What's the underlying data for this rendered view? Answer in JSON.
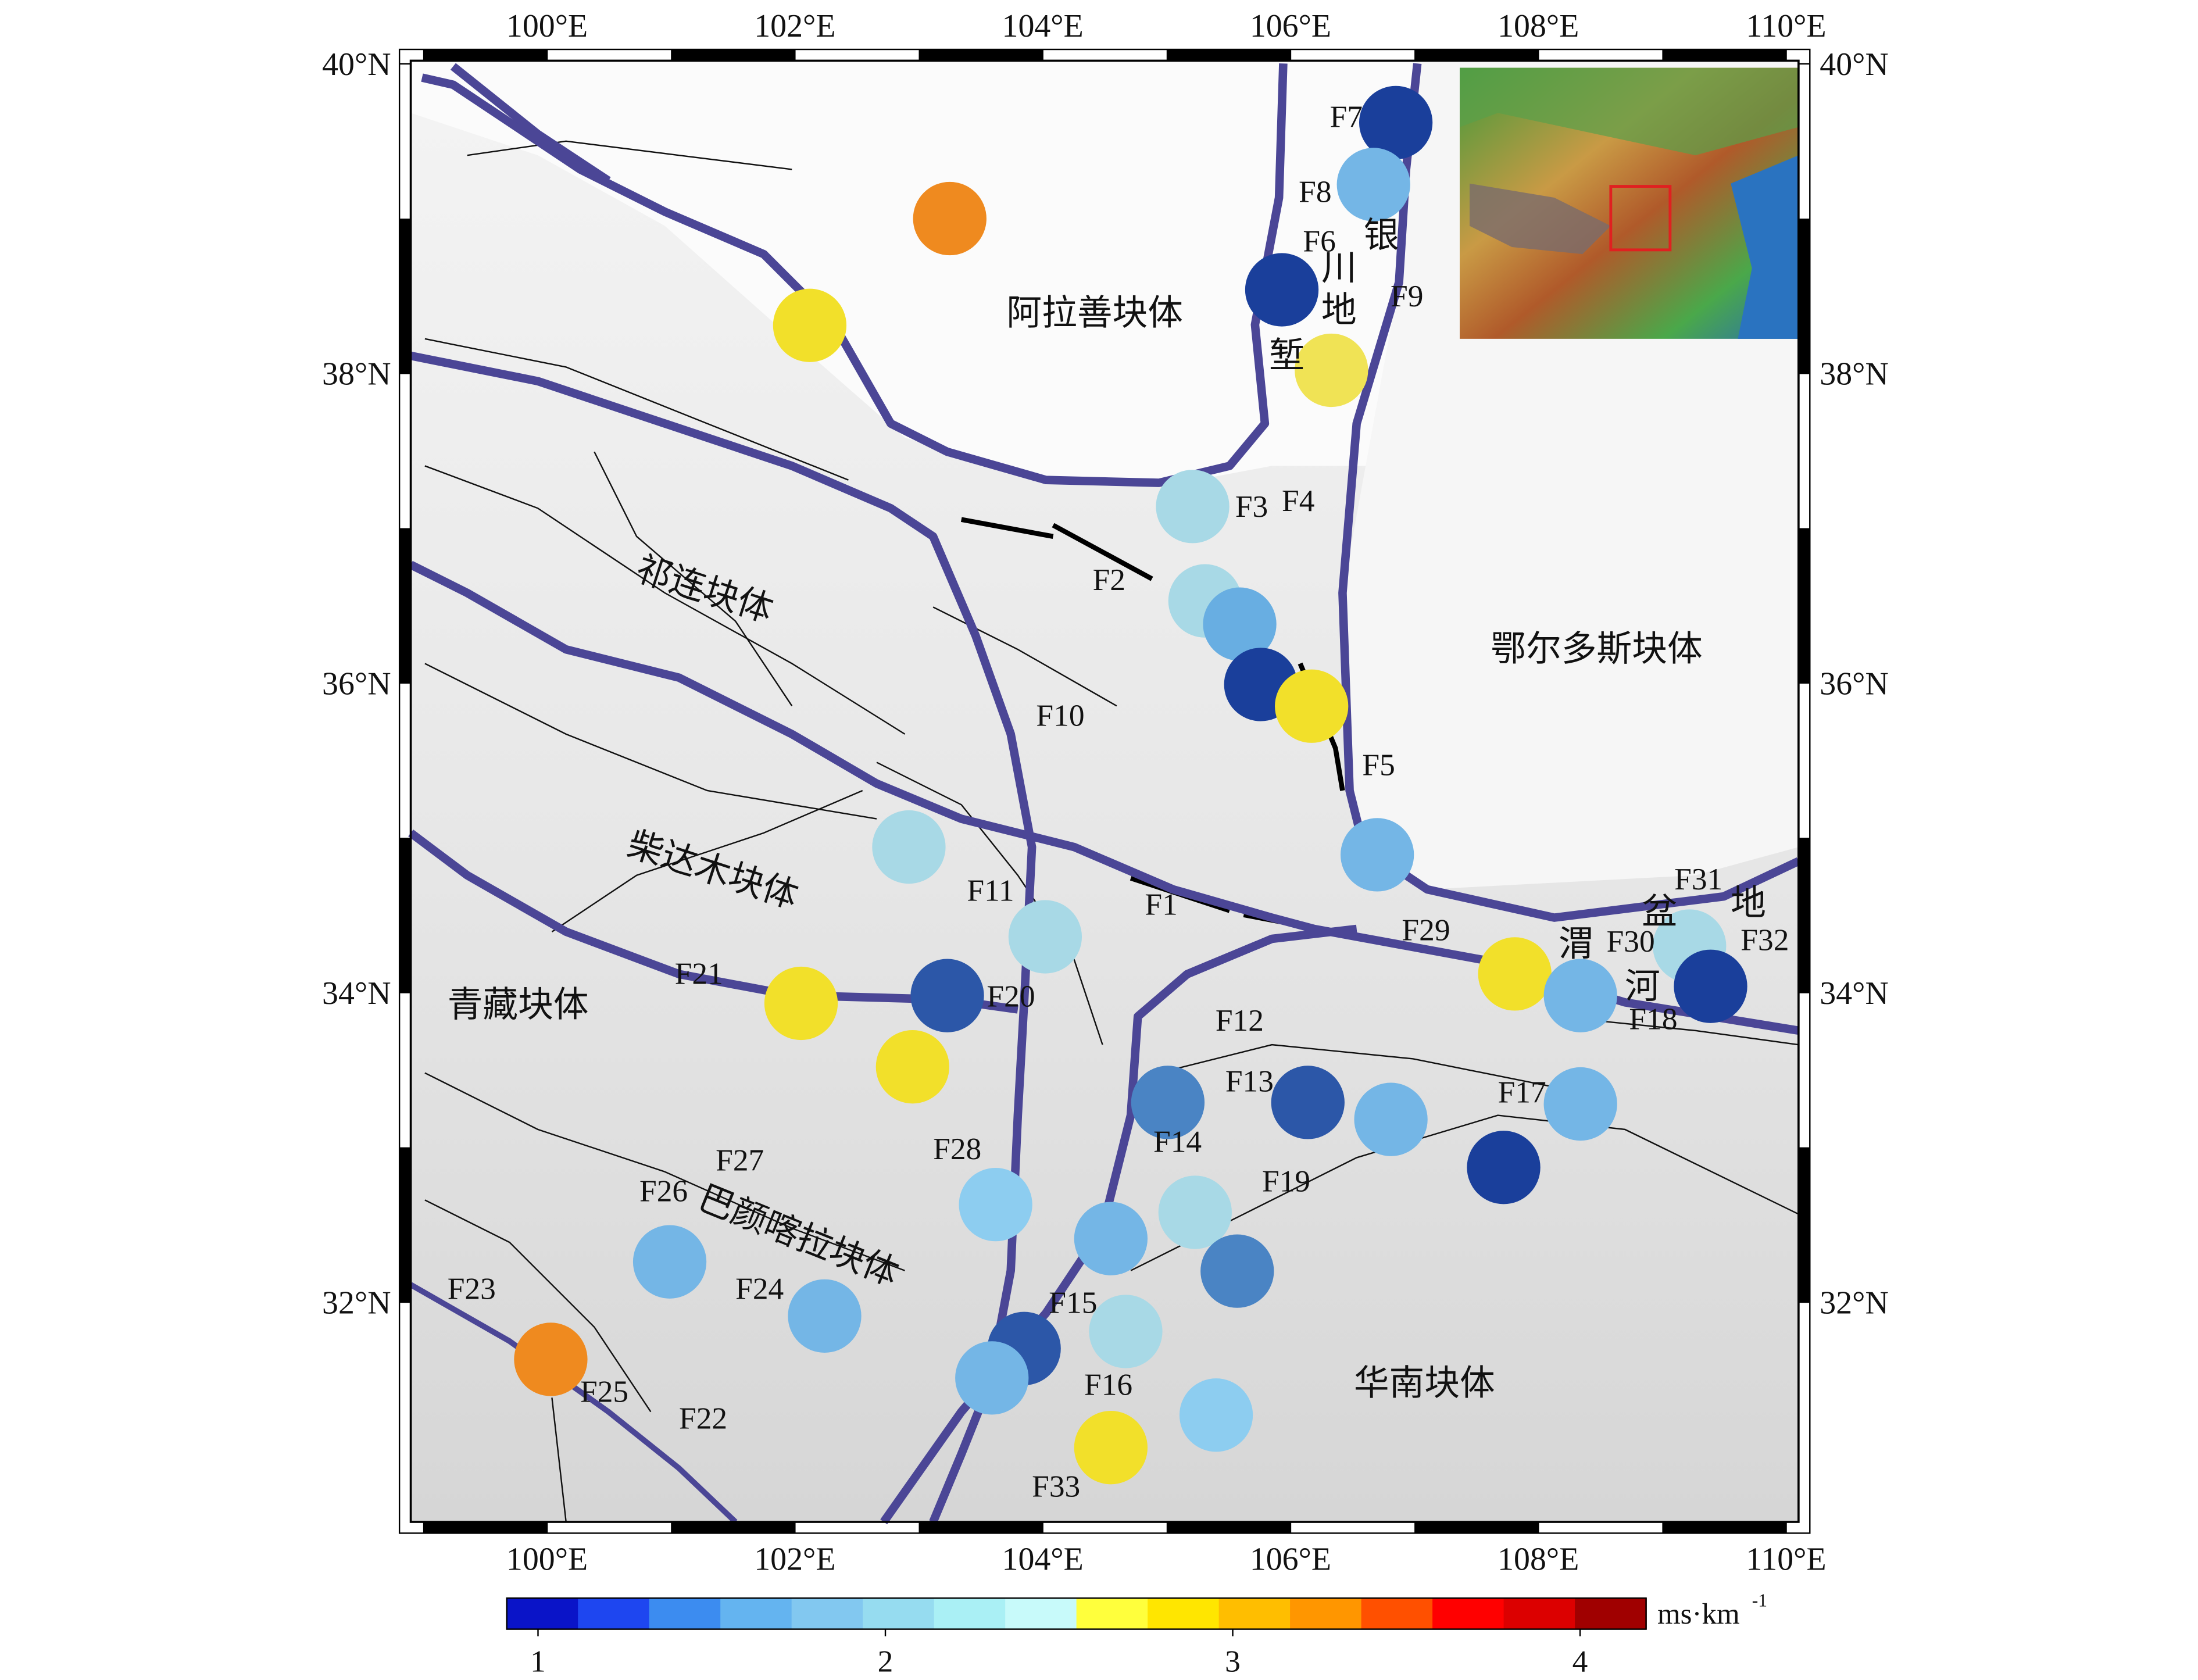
{
  "map": {
    "lon_range": [
      98.9,
      110.1
    ],
    "lat_range": [
      30.58,
      40.02
    ],
    "lon_ticks": [
      {
        "value": 100,
        "label": "100°E"
      },
      {
        "value": 102,
        "label": "102°E"
      },
      {
        "value": 104,
        "label": "104°E"
      },
      {
        "value": 106,
        "label": "106°E"
      },
      {
        "value": 108,
        "label": "108°E"
      },
      {
        "value": 110,
        "label": "110°E"
      }
    ],
    "lat_ticks": [
      {
        "value": 32,
        "label": "32°N"
      },
      {
        "value": 34,
        "label": "34°N"
      },
      {
        "value": 36,
        "label": "36°N"
      },
      {
        "value": 38,
        "label": "38°N"
      },
      {
        "value": 40,
        "label": "40°N"
      }
    ],
    "regions": [
      "阿拉善块体",
      "祁连块体",
      "鄂尔多斯块体",
      "柴达木块体",
      "青藏块体",
      "巴颜喀拉块体",
      "华南块体",
      "银川地堑",
      "渭河盆地"
    ],
    "faults": [
      "F1",
      "F2",
      "F3",
      "F4",
      "F5",
      "F6",
      "F7",
      "F8",
      "F9",
      "F10",
      "F11",
      "F12",
      "F13",
      "F14",
      "F15",
      "F16",
      "F17",
      "F18",
      "F19",
      "F20",
      "F21",
      "F22",
      "F23",
      "F24",
      "F25",
      "F26",
      "F27",
      "F28",
      "F29",
      "F30",
      "F31",
      "F32",
      "F33"
    ],
    "points": [
      {
        "lon": 106.85,
        "lat": 39.62,
        "value": 1.3,
        "color": "#1a3f9b"
      },
      {
        "lon": 106.67,
        "lat": 39.22,
        "value": 1.8,
        "color": "#74b6e6"
      },
      {
        "lon": 103.25,
        "lat": 39.0,
        "value": 3.3,
        "color": "#ef8a1f"
      },
      {
        "lon": 105.93,
        "lat": 38.54,
        "value": 1.3,
        "color": "#1a3f9b"
      },
      {
        "lon": 102.12,
        "lat": 38.31,
        "value": 2.9,
        "color": "#f2e02a"
      },
      {
        "lon": 106.33,
        "lat": 38.02,
        "value": 2.7,
        "color": "#f0e355"
      },
      {
        "lon": 105.21,
        "lat": 37.14,
        "value": 2.2,
        "color": "#a8d9e6"
      },
      {
        "lon": 105.31,
        "lat": 36.53,
        "value": 2.2,
        "color": "#a8d9e6"
      },
      {
        "lon": 105.59,
        "lat": 36.38,
        "value": 1.7,
        "color": "#68aee2"
      },
      {
        "lon": 105.76,
        "lat": 35.99,
        "value": 1.3,
        "color": "#1a3f9b"
      },
      {
        "lon": 106.17,
        "lat": 35.85,
        "value": 2.9,
        "color": "#f2e02a"
      },
      {
        "lon": 102.92,
        "lat": 34.94,
        "value": 2.2,
        "color": "#a8d9e6"
      },
      {
        "lon": 106.7,
        "lat": 34.89,
        "value": 1.8,
        "color": "#74b6e6"
      },
      {
        "lon": 104.02,
        "lat": 34.36,
        "value": 2.2,
        "color": "#a8d9e6"
      },
      {
        "lon": 109.22,
        "lat": 34.3,
        "value": 2.2,
        "color": "#a8d9e6"
      },
      {
        "lon": 107.81,
        "lat": 34.12,
        "value": 2.9,
        "color": "#f2e02a"
      },
      {
        "lon": 108.34,
        "lat": 33.98,
        "value": 1.8,
        "color": "#74b6e6"
      },
      {
        "lon": 109.39,
        "lat": 34.04,
        "value": 1.3,
        "color": "#1a3f9b"
      },
      {
        "lon": 102.05,
        "lat": 33.93,
        "value": 2.9,
        "color": "#f2e02a"
      },
      {
        "lon": 103.23,
        "lat": 33.98,
        "value": 1.4,
        "color": "#2c57a8"
      },
      {
        "lon": 102.95,
        "lat": 33.52,
        "value": 2.9,
        "color": "#f2e02a"
      },
      {
        "lon": 105.01,
        "lat": 33.29,
        "value": 1.6,
        "color": "#4a84c4"
      },
      {
        "lon": 106.14,
        "lat": 33.29,
        "value": 1.4,
        "color": "#2c57a8"
      },
      {
        "lon": 106.81,
        "lat": 33.18,
        "value": 1.8,
        "color": "#74b6e6"
      },
      {
        "lon": 108.34,
        "lat": 33.28,
        "value": 1.8,
        "color": "#74b6e6"
      },
      {
        "lon": 107.72,
        "lat": 32.87,
        "value": 1.3,
        "color": "#1a3f9b"
      },
      {
        "lon": 103.62,
        "lat": 32.63,
        "value": 1.9,
        "color": "#8dcdf0"
      },
      {
        "lon": 105.23,
        "lat": 32.58,
        "value": 2.2,
        "color": "#a8d9e6"
      },
      {
        "lon": 104.55,
        "lat": 32.41,
        "value": 1.8,
        "color": "#74b6e6"
      },
      {
        "lon": 105.57,
        "lat": 32.2,
        "value": 1.6,
        "color": "#4a84c4"
      },
      {
        "lon": 100.99,
        "lat": 32.26,
        "value": 1.8,
        "color": "#74b6e6"
      },
      {
        "lon": 102.24,
        "lat": 31.91,
        "value": 1.8,
        "color": "#74b6e6"
      },
      {
        "lon": 103.85,
        "lat": 31.7,
        "value": 1.4,
        "color": "#2c57a8"
      },
      {
        "lon": 104.67,
        "lat": 31.81,
        "value": 2.2,
        "color": "#a8d9e6"
      },
      {
        "lon": 103.59,
        "lat": 31.51,
        "value": 1.8,
        "color": "#74b6e6"
      },
      {
        "lon": 100.03,
        "lat": 31.63,
        "value": 3.3,
        "color": "#ef8a1f"
      },
      {
        "lon": 105.4,
        "lat": 31.27,
        "value": 1.9,
        "color": "#8dcdf0"
      },
      {
        "lon": 104.55,
        "lat": 31.06,
        "value": 2.9,
        "color": "#f2e02a"
      }
    ],
    "colorbar": {
      "range": [
        0.91,
        4.19
      ],
      "colors": [
        "#0a14c8",
        "#1e46f0",
        "#3c8cf0",
        "#64b4f0",
        "#82c8f0",
        "#96dcf0",
        "#aaf0f5",
        "#c8fafa",
        "#ffff3c",
        "#ffe600",
        "#ffbe00",
        "#ff9600",
        "#ff5000",
        "#ff0000",
        "#dc0000",
        "#a00000"
      ],
      "ticks": [
        1,
        2,
        3,
        4
      ],
      "unit": "ms·km",
      "unit_exponent": "-1"
    }
  }
}
